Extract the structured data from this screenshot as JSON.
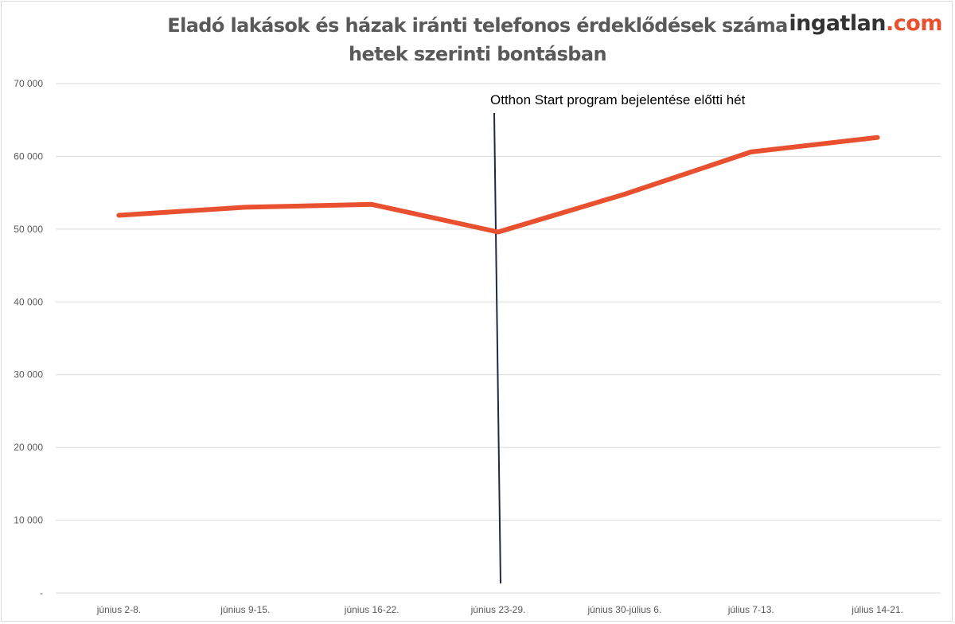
{
  "brand": {
    "name": "ingatlan",
    "tld": ".com"
  },
  "chart_data": {
    "type": "line",
    "title_lines": [
      "Eladó lakások és házak iránti telefonos érdeklődések száma",
      "hetek szerinti bontásban"
    ],
    "categories": [
      "június 2-8.",
      "június 9-15.",
      "június 16-22.",
      "június 23-29.",
      "június 30-július 6.",
      "július 7-13.",
      "július 14-21."
    ],
    "series": [
      {
        "values": [
          51900,
          53000,
          53400,
          49600,
          54800,
          60600,
          62600
        ],
        "color": "#e8502f"
      }
    ],
    "ylim": [
      0,
      70000
    ],
    "yticks": [
      0,
      10000,
      20000,
      30000,
      40000,
      50000,
      60000,
      70000
    ],
    "ytick_labels": [
      "-",
      "10 000",
      "20 000",
      "30 000",
      "40 000",
      "50 000",
      "60 000",
      "70 000"
    ],
    "grid": true,
    "annotation": {
      "text": "Otthon Start program bejelentése előtti hét",
      "category_index": 3,
      "color": "#1f2a44"
    }
  }
}
